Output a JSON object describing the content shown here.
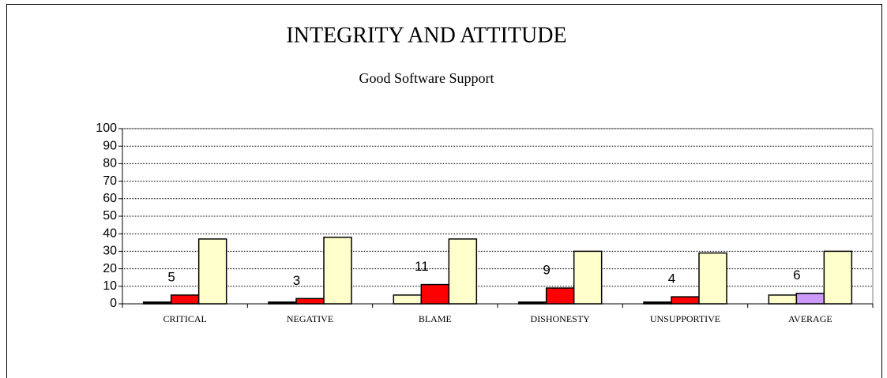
{
  "chart_data": {
    "type": "bar",
    "title": "INTEGRITY AND ATTITUDE",
    "subtitle": "Good Software Support",
    "categories": [
      "CRITICAL",
      "NEGATIVE",
      "BLAME",
      "DISHONESTY",
      "UNSUPPORTIVE",
      "AVERAGE"
    ],
    "series": [
      {
        "colors": [
          "#000000",
          "#000000",
          "#ffffcc",
          "#000000",
          "#000000",
          "#ffffcc"
        ],
        "values": [
          1,
          1,
          5,
          1,
          1,
          5
        ]
      },
      {
        "colors": [
          "#ff0000",
          "#ff0000",
          "#ff0000",
          "#ff0000",
          "#ff0000",
          "#cc99ff"
        ],
        "values": [
          5,
          3,
          11,
          9,
          4,
          6
        ],
        "show_labels": true
      },
      {
        "colors": [
          "#ffffcc",
          "#ffffcc",
          "#ffffcc",
          "#ffffcc",
          "#ffffcc",
          "#ffffcc"
        ],
        "values": [
          37,
          38,
          37,
          30,
          29,
          30
        ]
      }
    ],
    "ylim": [
      0,
      100
    ],
    "yticks": [
      0,
      10,
      20,
      30,
      40,
      50,
      60,
      70,
      80,
      90,
      100
    ],
    "grid": true
  }
}
